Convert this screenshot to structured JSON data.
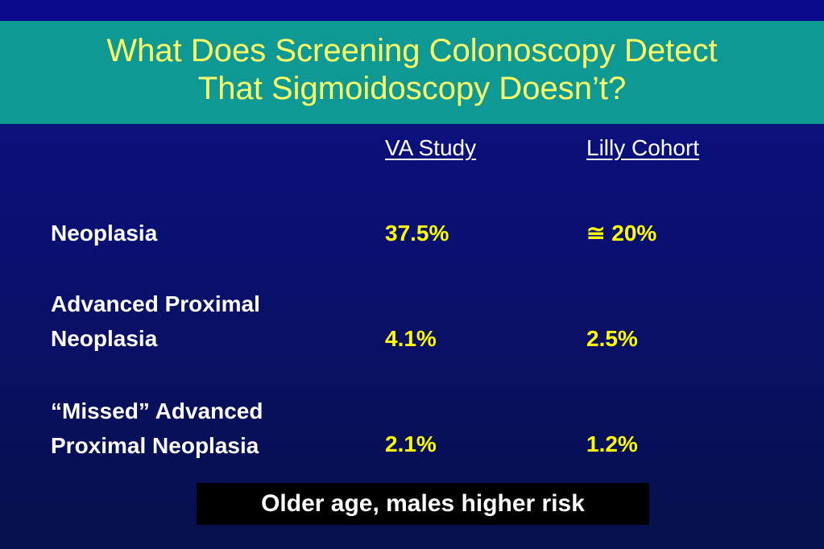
{
  "slide": {
    "title_line1": "What Does Screening Colonoscopy Detect",
    "title_line2": "That Sigmoidoscopy Doesn’t?"
  },
  "table": {
    "columns": [
      "VA Study",
      "Lilly Cohort"
    ],
    "rows": [
      {
        "label_lines": [
          "Neoplasia"
        ],
        "va": "37.5%",
        "lilly": "≅ 20%"
      },
      {
        "label_lines": [
          "Advanced Proximal",
          "Neoplasia"
        ],
        "va": "4.1%",
        "lilly": "2.5%"
      },
      {
        "label_lines": [
          "“Missed” Advanced",
          "Proximal Neoplasia"
        ],
        "va": "2.1%",
        "lilly": "1.2%"
      }
    ]
  },
  "footer": {
    "note": "Older age, males higher risk"
  },
  "colors": {
    "background": "#0c0f86",
    "title_band": "#0f9994",
    "title_text": "#ffff66",
    "value_text": "#ffff00",
    "label_text": "#ffffff",
    "footer_box": "#000000"
  }
}
